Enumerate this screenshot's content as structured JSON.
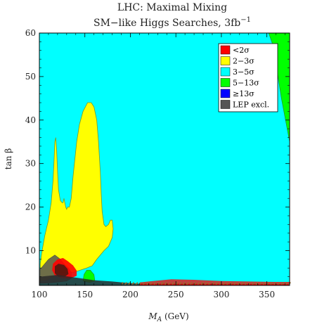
{
  "chart_data": {
    "type": "area",
    "title_line1": "LHC: Maximal Mixing",
    "title_line2_main": "SM−like Higgs Searches, 3fb",
    "title_line2_sup": "−1",
    "xlabel_main": "M",
    "xlabel_sub": "A",
    "xlabel_unit": " (GeV)",
    "ylabel": "tan β",
    "xlim": [
      100,
      375
    ],
    "ylim": [
      2,
      60
    ],
    "x_ticks": [
      100,
      150,
      200,
      250,
      300,
      350
    ],
    "y_ticks": [
      10,
      20,
      30,
      40,
      50,
      60
    ],
    "grid": false,
    "legend_position": "top-right",
    "colors": {
      "background_region": "#00ffff",
      "lt2": "#ff0000",
      "r2to3": "#ffff00",
      "r3to5": "#00ffff",
      "r5to13": "#00ff00",
      "ge13": "#0000ff",
      "lep": "#555555",
      "band_dark": "#2a2a2a",
      "band_mid": "#9a6b2a"
    },
    "series": [
      {
        "name": "<2σ",
        "color": "#ff0000"
      },
      {
        "name": "2−3σ",
        "color": "#ffff00"
      },
      {
        "name": "3−5σ",
        "color": "#00ffff"
      },
      {
        "name": "5−13σ",
        "color": "#00ff00"
      },
      {
        "name": "≥13σ",
        "color": "#0000ff"
      },
      {
        "name": "LEP excl.",
        "color": "#555555"
      }
    ],
    "regions": {
      "yellow_main": [
        [
          101,
          3
        ],
        [
          101,
          7
        ],
        [
          103,
          10
        ],
        [
          106,
          13.5
        ],
        [
          110,
          17
        ],
        [
          113,
          21
        ],
        [
          115,
          26
        ],
        [
          116,
          30
        ],
        [
          117,
          35
        ],
        [
          118,
          36
        ],
        [
          119,
          33
        ],
        [
          120,
          28
        ],
        [
          121,
          24
        ],
        [
          123,
          21.5
        ],
        [
          125,
          21
        ],
        [
          126,
          21
        ],
        [
          127,
          22
        ],
        [
          128,
          21
        ],
        [
          129,
          20
        ],
        [
          130,
          19.5
        ],
        [
          131,
          20
        ],
        [
          133,
          20
        ],
        [
          135,
          22
        ],
        [
          137,
          27
        ],
        [
          139,
          31
        ],
        [
          141,
          35
        ],
        [
          144,
          39
        ],
        [
          148,
          42
        ],
        [
          153,
          44
        ],
        [
          157,
          44
        ],
        [
          160,
          43
        ],
        [
          163,
          40
        ],
        [
          165,
          35
        ],
        [
          167,
          28
        ],
        [
          168,
          23
        ],
        [
          169,
          19
        ],
        [
          171,
          16
        ],
        [
          173,
          15.5
        ],
        [
          176,
          16
        ],
        [
          178,
          17
        ],
        [
          180,
          17
        ],
        [
          181,
          15
        ],
        [
          180,
          13
        ],
        [
          176,
          11
        ],
        [
          171,
          10
        ],
        [
          167,
          9
        ],
        [
          163,
          8
        ],
        [
          158,
          6.5
        ],
        [
          152,
          6
        ],
        [
          145,
          5.5
        ],
        [
          138,
          5
        ],
        [
          130,
          5
        ],
        [
          122,
          5
        ],
        [
          115,
          4
        ],
        [
          108,
          3.2
        ],
        [
          101,
          3
        ]
      ],
      "green_top_right": [
        [
          352,
          60
        ],
        [
          375,
          60
        ],
        [
          375,
          35
        ],
        [
          366,
          45
        ],
        [
          357,
          57
        ]
      ],
      "green_small": [
        [
          148,
          3
        ],
        [
          149,
          4.5
        ],
        [
          152,
          5.5
        ],
        [
          156,
          5.5
        ],
        [
          160,
          4.5
        ],
        [
          161,
          3
        ],
        [
          155,
          2.7
        ]
      ],
      "red_blob": [
        [
          115,
          7
        ],
        [
          120,
          8
        ],
        [
          126,
          8.3
        ],
        [
          131,
          7.6
        ],
        [
          137,
          6.6
        ],
        [
          141,
          5.4
        ],
        [
          141,
          4.2
        ],
        [
          134,
          3.6
        ],
        [
          124,
          3.7
        ],
        [
          117,
          4.3
        ],
        [
          114,
          5.5
        ]
      ],
      "lep_blob": [
        [
          100,
          5.5
        ],
        [
          104,
          6.5
        ],
        [
          110,
          8
        ],
        [
          117,
          9
        ],
        [
          122,
          8.2
        ],
        [
          127,
          7
        ],
        [
          132,
          6
        ],
        [
          135,
          5
        ],
        [
          135,
          3.6
        ],
        [
          130,
          3
        ],
        [
          122,
          2.8
        ],
        [
          112,
          2.6
        ],
        [
          104,
          2.5
        ],
        [
          100,
          2.5
        ]
      ],
      "dark_blob": [
        [
          117,
          6.4
        ],
        [
          121,
          7
        ],
        [
          127,
          6.7
        ],
        [
          131,
          5.8
        ],
        [
          132,
          4.6
        ],
        [
          128,
          4
        ],
        [
          121,
          4
        ],
        [
          117,
          4.8
        ]
      ],
      "red_band": [
        [
          210,
          2.7
        ],
        [
          225,
          3
        ],
        [
          245,
          3.4
        ],
        [
          270,
          3.3
        ],
        [
          300,
          3.0
        ],
        [
          330,
          2.9
        ],
        [
          360,
          2.8
        ],
        [
          375,
          2.8
        ],
        [
          375,
          2
        ],
        [
          210,
          2
        ]
      ],
      "bottom_band": [
        [
          100,
          2
        ],
        [
          100,
          4
        ],
        [
          120,
          4.4
        ],
        [
          140,
          3.8
        ],
        [
          160,
          3.2
        ],
        [
          180,
          2.9
        ],
        [
          195,
          2.6
        ],
        [
          210,
          2.4
        ],
        [
          375,
          2.3
        ],
        [
          375,
          2
        ]
      ]
    }
  }
}
